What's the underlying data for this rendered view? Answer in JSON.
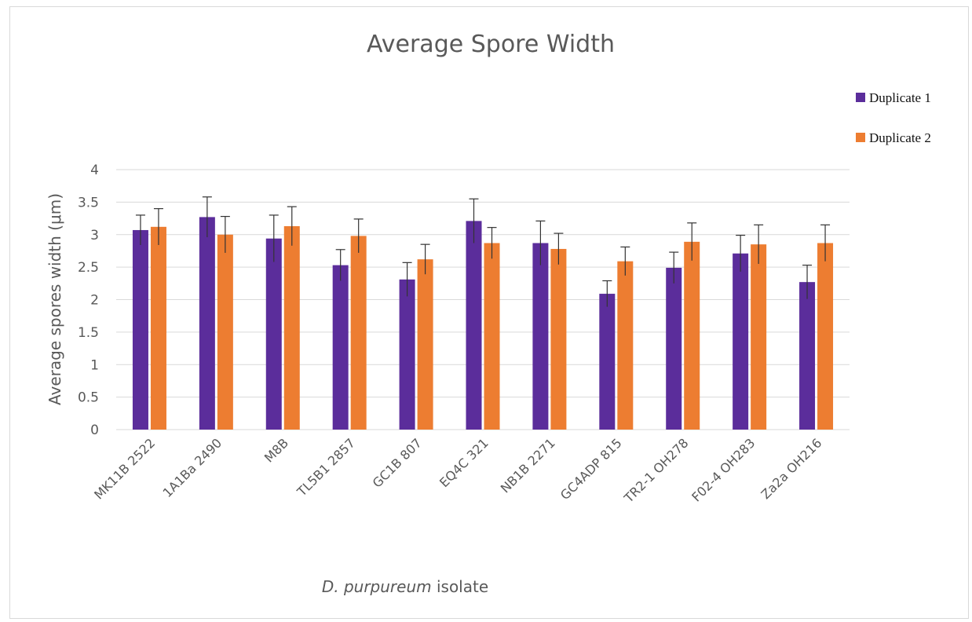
{
  "chart_data": {
    "type": "bar",
    "title": "Average Spore Width",
    "xlabel_italic": "D. purpureum",
    "xlabel_rest": " isolate",
    "ylabel": "Average spores width (μm)",
    "ylim": [
      0,
      4
    ],
    "yticks": [
      0,
      0.5,
      1,
      1.5,
      2,
      2.5,
      3,
      3.5,
      4
    ],
    "grid": true,
    "legend_position": "top-right",
    "categories": [
      "MK11B 2522",
      "1A1Ba 2490",
      "M8B",
      "TL5B1 2857",
      "GC1B 807",
      "EQ4C 321",
      "NB1B 2271",
      "GC4ADP 815",
      "TR2-1 OH278",
      "F02-4 OH283",
      "Za2a OH216"
    ],
    "series": [
      {
        "name": "Duplicate 1",
        "color": "#5b2d9b",
        "values": [
          3.07,
          3.27,
          2.94,
          2.53,
          2.31,
          3.21,
          2.87,
          2.09,
          2.49,
          2.71,
          2.27
        ],
        "errors": [
          0.23,
          0.31,
          0.36,
          0.24,
          0.26,
          0.34,
          0.34,
          0.2,
          0.24,
          0.28,
          0.26
        ]
      },
      {
        "name": "Duplicate 2",
        "color": "#ed7d31",
        "values": [
          3.12,
          3.0,
          3.13,
          2.98,
          2.62,
          2.87,
          2.78,
          2.59,
          2.89,
          2.85,
          2.87
        ],
        "errors": [
          0.28,
          0.28,
          0.3,
          0.26,
          0.23,
          0.24,
          0.24,
          0.22,
          0.29,
          0.3,
          0.28
        ]
      }
    ]
  }
}
